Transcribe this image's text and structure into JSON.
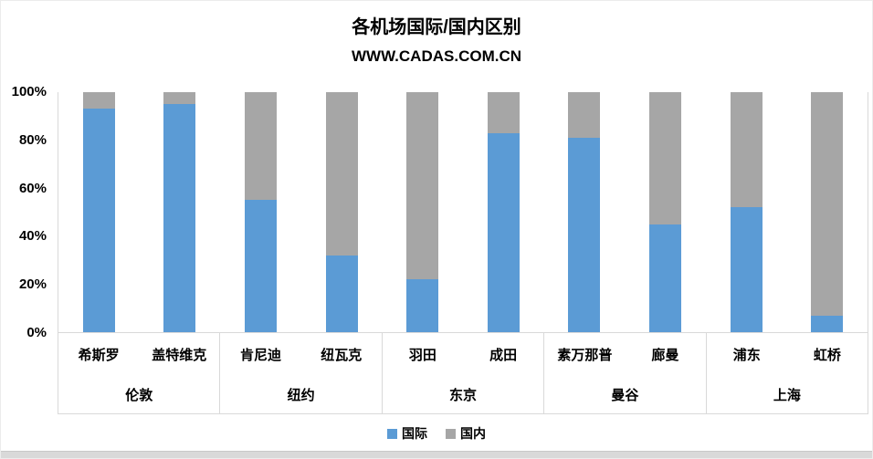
{
  "chart": {
    "title": "各机场国际/国内区别",
    "subtitle": "WWW.CADAS.COM.CN"
  },
  "colors": {
    "international": "#5B9BD5",
    "domestic": "#A6A6A6",
    "axis_line": "#D9D9D9",
    "text": "#000000",
    "background": "#FFFFFF"
  },
  "chart_data": {
    "type": "bar",
    "subtype": "stacked-100-percent",
    "title": "各机场国际/国内区别",
    "subtitle": "WWW.CADAS.COM.CN",
    "ylim": [
      0,
      100
    ],
    "y_ticks": [
      "0%",
      "20%",
      "40%",
      "60%",
      "80%",
      "100%"
    ],
    "gridlines": false,
    "legend_position": "bottom",
    "categories": [
      "希斯罗",
      "盖特维克",
      "肯尼迪",
      "纽瓦克",
      "羽田",
      "成田",
      "素万那普",
      "廊曼",
      "浦东",
      "虹桥"
    ],
    "groups": [
      {
        "label": "伦敦",
        "airports": [
          {
            "name": "希斯罗",
            "international": 93,
            "domestic": 7
          },
          {
            "name": "盖特维克",
            "international": 95,
            "domestic": 5
          }
        ]
      },
      {
        "label": "纽约",
        "airports": [
          {
            "name": "肯尼迪",
            "international": 55,
            "domestic": 45
          },
          {
            "name": "纽瓦克",
            "international": 32,
            "domestic": 68
          }
        ]
      },
      {
        "label": "东京",
        "airports": [
          {
            "name": "羽田",
            "international": 22,
            "domestic": 78
          },
          {
            "name": "成田",
            "international": 83,
            "domestic": 17
          }
        ]
      },
      {
        "label": "曼谷",
        "airports": [
          {
            "name": "素万那普",
            "international": 81,
            "domestic": 19
          },
          {
            "name": "廊曼",
            "international": 45,
            "domestic": 55
          }
        ]
      },
      {
        "label": "上海",
        "airports": [
          {
            "name": "浦东",
            "international": 52,
            "domestic": 48
          },
          {
            "name": "虹桥",
            "international": 7,
            "domestic": 93
          }
        ]
      }
    ],
    "series": [
      {
        "name": "国际",
        "color": "#5B9BD5",
        "values": [
          93,
          95,
          55,
          32,
          22,
          83,
          81,
          45,
          52,
          7
        ]
      },
      {
        "name": "国内",
        "color": "#A6A6A6",
        "values": [
          7,
          5,
          45,
          68,
          78,
          17,
          19,
          55,
          48,
          93
        ]
      }
    ]
  }
}
